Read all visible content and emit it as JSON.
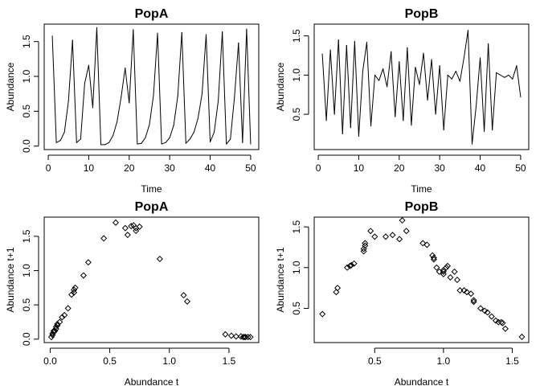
{
  "chart_data": [
    {
      "type": "line",
      "title": "PopA",
      "xlabel": "Time",
      "ylabel": "Abundance",
      "xlim": [
        -1,
        52
      ],
      "ylim": [
        -0.05,
        1.75
      ],
      "x_ticks": [
        0,
        10,
        20,
        30,
        40,
        50
      ],
      "y_ticks": [
        0.0,
        0.5,
        1.0,
        1.5
      ],
      "x_tick_labels": [
        "0",
        "10",
        "20",
        "30",
        "40",
        "50"
      ],
      "y_tick_labels": [
        "0.0",
        "0.5",
        "1.0",
        "1.5"
      ],
      "grid": false,
      "x": [
        1,
        2,
        3,
        4,
        5,
        6,
        7,
        8,
        9,
        10,
        11,
        12,
        13,
        14,
        15,
        16,
        17,
        18,
        19,
        20,
        21,
        22,
        23,
        24,
        25,
        26,
        27,
        28,
        29,
        30,
        31,
        32,
        33,
        34,
        35,
        36,
        37,
        38,
        39,
        40,
        41,
        42,
        43,
        44,
        45,
        46,
        47,
        48,
        49,
        50
      ],
      "values": [
        1.58,
        0.05,
        0.08,
        0.2,
        0.65,
        1.52,
        0.05,
        0.1,
        0.9,
        1.16,
        0.55,
        1.7,
        0.02,
        0.02,
        0.05,
        0.15,
        0.35,
        0.7,
        1.12,
        0.62,
        1.67,
        0.03,
        0.04,
        0.12,
        0.31,
        0.73,
        1.62,
        0.03,
        0.05,
        0.12,
        0.3,
        0.72,
        1.63,
        0.04,
        0.1,
        0.2,
        0.4,
        0.75,
        1.6,
        0.06,
        0.2,
        0.65,
        1.64,
        0.03,
        0.1,
        0.7,
        1.48,
        0.05,
        1.68,
        0.03
      ]
    },
    {
      "type": "line",
      "title": "PopB",
      "xlabel": "Time",
      "ylabel": "Abundance",
      "xlim": [
        -1,
        52
      ],
      "ylim": [
        0.05,
        1.65
      ],
      "x_ticks": [
        0,
        10,
        20,
        30,
        40,
        50
      ],
      "y_ticks": [
        0.5,
        1.0,
        1.5
      ],
      "x_tick_labels": [
        "0",
        "10",
        "20",
        "30",
        "40",
        "50"
      ],
      "y_tick_labels": [
        "0.5",
        "1.0",
        "1.5"
      ],
      "grid": false,
      "x": [
        1,
        2,
        3,
        4,
        5,
        6,
        7,
        8,
        9,
        10,
        11,
        12,
        13,
        14,
        15,
        16,
        17,
        18,
        19,
        20,
        21,
        22,
        23,
        24,
        25,
        26,
        27,
        28,
        29,
        30,
        31,
        32,
        33,
        34,
        35,
        36,
        37,
        38,
        39,
        40,
        41,
        42,
        43,
        44,
        45,
        46,
        47,
        48,
        49,
        50
      ],
      "values": [
        1.27,
        0.42,
        1.32,
        0.5,
        1.45,
        0.25,
        1.38,
        0.33,
        1.43,
        0.22,
        1.05,
        1.42,
        0.35,
        1.0,
        0.93,
        1.08,
        0.85,
        1.3,
        0.47,
        1.17,
        0.42,
        1.35,
        0.36,
        1.1,
        0.88,
        1.28,
        0.68,
        1.2,
        0.5,
        1.12,
        0.3,
        1.0,
        0.95,
        1.05,
        0.92,
        1.22,
        1.57,
        0.12,
        0.6,
        1.22,
        0.28,
        1.4,
        0.3,
        1.03,
        1.0,
        0.97,
        1.0,
        0.95,
        1.12,
        0.72
      ]
    },
    {
      "type": "scatter",
      "title": "PopA",
      "xlabel": "Abundance t",
      "ylabel": "Abundance t+1",
      "xlim": [
        -0.05,
        1.75
      ],
      "ylim": [
        -0.05,
        1.78
      ],
      "x_ticks": [
        0.0,
        0.5,
        1.0,
        1.5
      ],
      "y_ticks": [
        0.0,
        0.5,
        1.0,
        1.5
      ],
      "x_tick_labels": [
        "0.0",
        "0.5",
        "1.0",
        "1.5"
      ],
      "y_tick_labels": [
        "0.0",
        "0.5",
        "1.0",
        "1.5"
      ],
      "grid": false,
      "points": [
        [
          0.01,
          0.03
        ],
        [
          0.02,
          0.06
        ],
        [
          0.02,
          0.08
        ],
        [
          0.03,
          0.1
        ],
        [
          0.03,
          0.12
        ],
        [
          0.04,
          0.12
        ],
        [
          0.05,
          0.15
        ],
        [
          0.05,
          0.18
        ],
        [
          0.06,
          0.2
        ],
        [
          0.06,
          0.22
        ],
        [
          0.08,
          0.25
        ],
        [
          0.1,
          0.32
        ],
        [
          0.12,
          0.35
        ],
        [
          0.15,
          0.45
        ],
        [
          0.18,
          0.65
        ],
        [
          0.2,
          0.68
        ],
        [
          0.2,
          0.72
        ],
        [
          0.21,
          0.75
        ],
        [
          0.28,
          0.93
        ],
        [
          0.32,
          1.12
        ],
        [
          0.45,
          1.47
        ],
        [
          0.55,
          1.7
        ],
        [
          0.63,
          1.62
        ],
        [
          0.65,
          1.52
        ],
        [
          0.68,
          1.65
        ],
        [
          0.7,
          1.66
        ],
        [
          0.72,
          1.58
        ],
        [
          0.72,
          1.62
        ],
        [
          0.75,
          1.64
        ],
        [
          0.92,
          1.17
        ],
        [
          1.12,
          0.64
        ],
        [
          1.15,
          0.55
        ],
        [
          1.47,
          0.07
        ],
        [
          1.52,
          0.05
        ],
        [
          1.56,
          0.04
        ],
        [
          1.6,
          0.04
        ],
        [
          1.62,
          0.03
        ],
        [
          1.63,
          0.03
        ],
        [
          1.64,
          0.03
        ],
        [
          1.66,
          0.03
        ],
        [
          1.68,
          0.03
        ]
      ]
    },
    {
      "type": "scatter",
      "title": "PopB",
      "xlabel": "Abundance t",
      "ylabel": "Abundance t+1",
      "xlim": [
        0.06,
        1.62
      ],
      "ylim": [
        0.08,
        1.62
      ],
      "x_ticks": [
        0.5,
        1.0,
        1.5
      ],
      "y_ticks": [
        0.5,
        1.0,
        1.5
      ],
      "x_tick_labels": [
        "0.5",
        "1.0",
        "1.5"
      ],
      "y_tick_labels": [
        "0.5",
        "1.0",
        "1.5"
      ],
      "grid": false,
      "points": [
        [
          0.12,
          0.43
        ],
        [
          0.22,
          0.7
        ],
        [
          0.23,
          0.75
        ],
        [
          0.3,
          1.0
        ],
        [
          0.32,
          1.02
        ],
        [
          0.33,
          1.03
        ],
        [
          0.35,
          1.05
        ],
        [
          0.42,
          1.2
        ],
        [
          0.42,
          1.23
        ],
        [
          0.43,
          1.27
        ],
        [
          0.43,
          1.3
        ],
        [
          0.47,
          1.45
        ],
        [
          0.5,
          1.38
        ],
        [
          0.58,
          1.38
        ],
        [
          0.63,
          1.4
        ],
        [
          0.68,
          1.35
        ],
        [
          0.7,
          1.58
        ],
        [
          0.73,
          1.45
        ],
        [
          0.85,
          1.3
        ],
        [
          0.88,
          1.28
        ],
        [
          0.92,
          1.15
        ],
        [
          0.93,
          1.12
        ],
        [
          0.93,
          1.1
        ],
        [
          0.95,
          1.0
        ],
        [
          0.97,
          0.95
        ],
        [
          1.0,
          0.97
        ],
        [
          1.0,
          0.95
        ],
        [
          1.0,
          0.92
        ],
        [
          1.02,
          1.0
        ],
        [
          1.03,
          1.02
        ],
        [
          1.05,
          0.88
        ],
        [
          1.08,
          0.95
        ],
        [
          1.1,
          0.85
        ],
        [
          1.12,
          0.72
        ],
        [
          1.15,
          0.72
        ],
        [
          1.17,
          0.7
        ],
        [
          1.2,
          0.68
        ],
        [
          1.22,
          0.6
        ],
        [
          1.22,
          0.58
        ],
        [
          1.27,
          0.5
        ],
        [
          1.3,
          0.47
        ],
        [
          1.32,
          0.45
        ],
        [
          1.35,
          0.4
        ],
        [
          1.38,
          0.35
        ],
        [
          1.4,
          0.33
        ],
        [
          1.42,
          0.33
        ],
        [
          1.43,
          0.32
        ],
        [
          1.45,
          0.25
        ],
        [
          1.57,
          0.15
        ]
      ]
    }
  ]
}
